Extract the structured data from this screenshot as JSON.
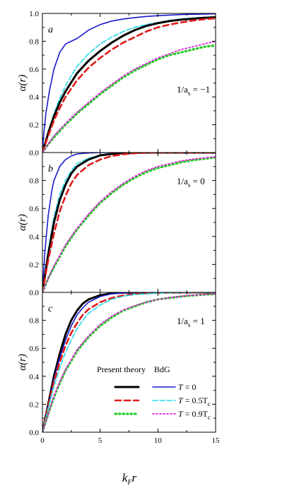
{
  "chart_data": [
    {
      "type": "line",
      "panel_label": "a",
      "annotation": {
        "prefix": "1/a",
        "sub": "s",
        "suffix": " = −1"
      },
      "ylabel": "α(r)",
      "xlim": [
        0,
        15
      ],
      "ylim": [
        0,
        1.0
      ],
      "yticks": [
        "0.0",
        "0.2",
        "0.4",
        "0.6",
        "0.8",
        "1.0"
      ],
      "series": [
        {
          "key": "bdg_T0",
          "color": "#1a1acc",
          "dash": "solid",
          "width": 1.6,
          "x": [
            0,
            0.1,
            0.3,
            0.6,
            1,
            1.5,
            2,
            2.5,
            3,
            3.5,
            4,
            4.5,
            5,
            6,
            7,
            8,
            9,
            10,
            12,
            15
          ],
          "y": [
            0,
            0.12,
            0.28,
            0.44,
            0.6,
            0.72,
            0.78,
            0.8,
            0.82,
            0.85,
            0.88,
            0.9,
            0.92,
            0.945,
            0.96,
            0.97,
            0.978,
            0.984,
            0.992,
            0.997
          ]
        },
        {
          "key": "bdg_T05",
          "color": "#22d8e8",
          "dash": "7,3",
          "width": 1.6,
          "x": [
            0,
            0.5,
            1,
            1.5,
            2,
            3,
            4,
            5,
            6,
            7,
            8,
            9,
            10,
            11,
            12,
            13,
            14,
            15
          ],
          "y": [
            0,
            0.15,
            0.28,
            0.39,
            0.48,
            0.62,
            0.71,
            0.78,
            0.83,
            0.87,
            0.9,
            0.92,
            0.935,
            0.95,
            0.96,
            0.967,
            0.972,
            0.976
          ]
        },
        {
          "key": "pt_T0",
          "color": "#000000",
          "dash": "solid",
          "width": 3,
          "x": [
            0,
            0.5,
            1,
            1.5,
            2,
            3,
            4,
            5,
            6,
            7,
            8,
            9,
            10,
            11,
            12,
            13,
            14,
            15
          ],
          "y": [
            0,
            0.14,
            0.26,
            0.36,
            0.44,
            0.57,
            0.66,
            0.73,
            0.79,
            0.84,
            0.88,
            0.91,
            0.93,
            0.945,
            0.955,
            0.962,
            0.968,
            0.972
          ]
        },
        {
          "key": "pt_T05",
          "color": "#e01b1b",
          "dash": "8,5",
          "width": 2.6,
          "x": [
            0,
            0.5,
            1,
            1.5,
            2,
            3,
            4,
            5,
            6,
            7,
            8,
            9,
            10,
            11,
            12,
            13,
            14,
            15
          ],
          "y": [
            0,
            0.12,
            0.23,
            0.32,
            0.4,
            0.52,
            0.61,
            0.68,
            0.74,
            0.79,
            0.83,
            0.87,
            0.9,
            0.92,
            0.935,
            0.948,
            0.958,
            0.965
          ]
        },
        {
          "key": "pt_T09",
          "color": "#22cc22",
          "dash": "1.5,4",
          "width": 3.2,
          "x": [
            0,
            0.5,
            1,
            2,
            3,
            4,
            5,
            6,
            7,
            8,
            9,
            10,
            11,
            12,
            13,
            14,
            15
          ],
          "y": [
            0,
            0.06,
            0.11,
            0.2,
            0.28,
            0.35,
            0.42,
            0.48,
            0.54,
            0.59,
            0.63,
            0.67,
            0.7,
            0.72,
            0.74,
            0.76,
            0.77
          ]
        },
        {
          "key": "bdg_T09",
          "color": "#dd22dd",
          "dash": "2,3",
          "width": 1.8,
          "x": [
            0,
            0.5,
            1,
            2,
            3,
            4,
            5,
            6,
            7,
            8,
            9,
            10,
            11,
            12,
            13,
            14,
            15
          ],
          "y": [
            0,
            0.06,
            0.12,
            0.21,
            0.29,
            0.36,
            0.43,
            0.49,
            0.55,
            0.6,
            0.64,
            0.68,
            0.71,
            0.74,
            0.76,
            0.78,
            0.8
          ]
        }
      ]
    },
    {
      "type": "line",
      "panel_label": "b",
      "annotation": {
        "prefix": "1/a",
        "sub": "s",
        "suffix": " = 0"
      },
      "ylabel": "α(r)",
      "xlim": [
        0,
        15
      ],
      "ylim": [
        0,
        1.0
      ],
      "yticks": [
        "0.0",
        "0.2",
        "0.4",
        "0.6",
        "0.8"
      ],
      "series": [
        {
          "key": "bdg_T0",
          "color": "#1a1acc",
          "dash": "solid",
          "width": 1.6,
          "x": [
            0,
            0.2,
            0.5,
            0.8,
            1,
            1.5,
            2,
            2.5,
            3,
            4,
            5,
            6,
            7,
            8,
            10,
            15
          ],
          "y": [
            0,
            0.28,
            0.55,
            0.72,
            0.8,
            0.9,
            0.95,
            0.975,
            0.99,
            0.997,
            1,
            1,
            1,
            1,
            1,
            1
          ]
        },
        {
          "key": "bdg_T05",
          "color": "#22d8e8",
          "dash": "7,3",
          "width": 1.6,
          "x": [
            0,
            0.5,
            1,
            1.5,
            2,
            2.5,
            3,
            4,
            5,
            6,
            7,
            8,
            10,
            15
          ],
          "y": [
            0,
            0.3,
            0.54,
            0.7,
            0.8,
            0.87,
            0.92,
            0.96,
            0.982,
            0.992,
            0.997,
            1,
            1,
            1
          ]
        },
        {
          "key": "pt_T0",
          "color": "#000000",
          "dash": "solid",
          "width": 3,
          "x": [
            0,
            0.5,
            1,
            1.5,
            2,
            2.5,
            3,
            4,
            5,
            6,
            7,
            8,
            10,
            15
          ],
          "y": [
            0,
            0.27,
            0.5,
            0.66,
            0.77,
            0.85,
            0.9,
            0.95,
            0.98,
            0.99,
            0.996,
            1,
            1,
            1
          ]
        },
        {
          "key": "pt_T05",
          "color": "#e01b1b",
          "dash": "8,5",
          "width": 2.6,
          "x": [
            0,
            0.5,
            1,
            1.5,
            2,
            2.5,
            3,
            4,
            5,
            6,
            7,
            8,
            9,
            10,
            15
          ],
          "y": [
            0,
            0.23,
            0.42,
            0.58,
            0.69,
            0.78,
            0.84,
            0.91,
            0.95,
            0.975,
            0.988,
            0.995,
            0.998,
            1,
            1
          ]
        },
        {
          "key": "pt_T09",
          "color": "#22cc22",
          "dash": "1.5,4",
          "width": 3.2,
          "x": [
            0,
            0.5,
            1,
            2,
            3,
            4,
            5,
            6,
            7,
            8,
            9,
            10,
            11,
            12,
            13,
            14,
            15
          ],
          "y": [
            0,
            0.1,
            0.18,
            0.33,
            0.45,
            0.55,
            0.64,
            0.71,
            0.77,
            0.82,
            0.86,
            0.89,
            0.91,
            0.93,
            0.945,
            0.955,
            0.965
          ]
        },
        {
          "key": "bdg_T09",
          "color": "#dd22dd",
          "dash": "2,3",
          "width": 1.8,
          "x": [
            0,
            0.5,
            1,
            2,
            3,
            4,
            5,
            6,
            7,
            8,
            9,
            10,
            11,
            12,
            13,
            14,
            15
          ],
          "y": [
            0,
            0.1,
            0.19,
            0.34,
            0.46,
            0.56,
            0.65,
            0.72,
            0.78,
            0.83,
            0.87,
            0.9,
            0.92,
            0.94,
            0.952,
            0.962,
            0.97
          ]
        }
      ]
    },
    {
      "type": "line",
      "panel_label": "c",
      "annotation": {
        "prefix": "1/a",
        "sub": "s",
        "suffix": " = 1"
      },
      "ylabel": "α(r)",
      "xlabel_main": "k",
      "xlabel_sub": "F",
      "xlabel_tail": "r",
      "xlim": [
        0,
        15
      ],
      "xticks": [
        "0",
        "5",
        "10",
        "15"
      ],
      "ylim": [
        0,
        1.0
      ],
      "yticks": [
        "0.0",
        "0.2",
        "0.4",
        "0.6",
        "0.8"
      ],
      "series": [
        {
          "key": "pt_T0",
          "color": "#000000",
          "dash": "solid",
          "width": 3,
          "x": [
            0,
            0.5,
            1,
            1.5,
            2,
            2.5,
            3,
            3.5,
            4,
            5,
            6,
            7,
            8,
            10,
            15
          ],
          "y": [
            0,
            0.2,
            0.4,
            0.56,
            0.7,
            0.8,
            0.87,
            0.92,
            0.95,
            0.98,
            0.993,
            0.998,
            1,
            1,
            1
          ]
        },
        {
          "key": "bdg_T0",
          "color": "#1a1acc",
          "dash": "solid",
          "width": 1.6,
          "x": [
            0,
            0.5,
            1,
            1.5,
            2,
            2.5,
            3,
            3.5,
            4,
            5,
            6,
            7,
            8,
            10,
            15
          ],
          "y": [
            0,
            0.19,
            0.38,
            0.53,
            0.66,
            0.76,
            0.84,
            0.89,
            0.93,
            0.97,
            0.99,
            0.996,
            1,
            1,
            1
          ]
        },
        {
          "key": "pt_T05",
          "color": "#e01b1b",
          "dash": "8,5",
          "width": 2.6,
          "x": [
            0,
            0.5,
            1,
            1.5,
            2,
            2.5,
            3,
            3.5,
            4,
            5,
            6,
            7,
            8,
            10,
            12,
            15
          ],
          "y": [
            0,
            0.19,
            0.36,
            0.5,
            0.62,
            0.71,
            0.78,
            0.84,
            0.88,
            0.93,
            0.96,
            0.978,
            0.988,
            0.996,
            0.999,
            1
          ]
        },
        {
          "key": "bdg_T05",
          "color": "#22d8e8",
          "dash": "7,3",
          "width": 1.6,
          "x": [
            0,
            0.5,
            1,
            1.5,
            2,
            2.5,
            3,
            3.5,
            4,
            5,
            6,
            7,
            8,
            10,
            12,
            15
          ],
          "y": [
            0,
            0.17,
            0.33,
            0.46,
            0.57,
            0.66,
            0.74,
            0.8,
            0.85,
            0.91,
            0.95,
            0.972,
            0.985,
            0.995,
            0.999,
            1
          ]
        },
        {
          "key": "pt_T09",
          "color": "#22cc22",
          "dash": "1.5,4",
          "width": 3.2,
          "x": [
            0,
            0.5,
            1,
            1.5,
            2,
            3,
            4,
            5,
            6,
            7,
            8,
            9,
            10,
            11,
            12,
            13,
            14,
            15
          ],
          "y": [
            0,
            0.13,
            0.25,
            0.35,
            0.44,
            0.58,
            0.68,
            0.76,
            0.82,
            0.87,
            0.9,
            0.93,
            0.95,
            0.96,
            0.97,
            0.978,
            0.984,
            0.988
          ]
        },
        {
          "key": "bdg_T09",
          "color": "#dd22dd",
          "dash": "2,3",
          "width": 1.8,
          "x": [
            0,
            0.5,
            1,
            1.5,
            2,
            3,
            4,
            5,
            6,
            7,
            8,
            9,
            10,
            11,
            12,
            13,
            14,
            15
          ],
          "y": [
            0,
            0.13,
            0.26,
            0.36,
            0.45,
            0.59,
            0.69,
            0.77,
            0.83,
            0.875,
            0.905,
            0.93,
            0.95,
            0.962,
            0.972,
            0.98,
            0.985,
            0.99
          ]
        }
      ]
    }
  ],
  "legend": {
    "header_left": "Present theory",
    "header_right": "BdG",
    "rows": [
      {
        "left_key": "pt_T0",
        "right_key": "bdg_T0",
        "label_T": "T",
        "label_rest": " = 0",
        "label_sub": ""
      },
      {
        "left_key": "pt_T05",
        "right_key": "bdg_T05",
        "label_T": "T",
        "label_rest": " = 0.5T",
        "label_sub": "c"
      },
      {
        "left_key": "pt_T09",
        "right_key": "bdg_T09",
        "label_T": "T",
        "label_rest": " = 0.9T",
        "label_sub": "c"
      }
    ]
  }
}
